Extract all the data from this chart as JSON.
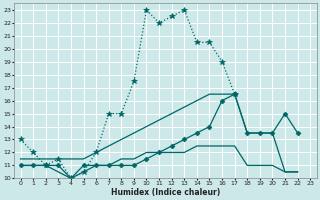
{
  "xlabel": "Humidex (Indice chaleur)",
  "background_color": "#cce8e8",
  "grid_color": "#ffffff",
  "line_color": "#006666",
  "xlim": [
    -0.5,
    23.5
  ],
  "ylim": [
    10,
    23.5
  ],
  "xticks": [
    0,
    1,
    2,
    3,
    4,
    5,
    6,
    7,
    8,
    9,
    10,
    11,
    12,
    13,
    14,
    15,
    16,
    17,
    18,
    19,
    20,
    21,
    22,
    23
  ],
  "yticks": [
    10,
    11,
    12,
    13,
    14,
    15,
    16,
    17,
    18,
    19,
    20,
    21,
    22,
    23
  ],
  "lines": [
    {
      "x": [
        0,
        1,
        2,
        3,
        4,
        5,
        6,
        7,
        8,
        9,
        10,
        11,
        12,
        13,
        14,
        15,
        16,
        17
      ],
      "y": [
        13,
        12,
        11,
        11.5,
        10,
        10.5,
        12,
        15,
        15,
        17.5,
        23,
        22,
        22.5,
        23,
        20.5,
        20.5,
        19,
        16.5
      ],
      "style": "dotted",
      "marker": "*",
      "markersize": 4
    },
    {
      "x": [
        0,
        1,
        2,
        3,
        4,
        5,
        6,
        7,
        8,
        9,
        10,
        11,
        12,
        13,
        14,
        15,
        16,
        17,
        18,
        19,
        20,
        21,
        22,
        23
      ],
      "y": [
        11,
        11,
        11,
        11,
        10,
        11,
        11,
        11,
        11,
        11,
        11.5,
        12,
        12.5,
        13,
        13.5,
        14,
        16,
        16.5,
        13.5,
        13.5,
        13.5,
        15,
        13.5,
        null
      ],
      "style": "solid",
      "marker": "D",
      "markersize": 2.5
    },
    {
      "x": [
        0,
        1,
        2,
        3,
        4,
        5,
        6,
        7,
        8,
        9,
        10,
        11,
        12,
        13,
        14,
        15,
        16,
        17,
        18,
        19,
        20,
        21,
        22,
        23
      ],
      "y": [
        11.5,
        11.5,
        11.5,
        11.5,
        11.5,
        11.5,
        12,
        12.5,
        13,
        13.5,
        14,
        14.5,
        15,
        15.5,
        16,
        16.5,
        16.5,
        16.5,
        13.5,
        13.5,
        13.5,
        10.5,
        10.5,
        null
      ],
      "style": "solid",
      "marker": null,
      "markersize": 0
    },
    {
      "x": [
        0,
        1,
        2,
        3,
        4,
        5,
        6,
        7,
        8,
        9,
        10,
        11,
        12,
        13,
        14,
        15,
        16,
        17,
        18,
        19,
        20,
        21,
        22,
        23
      ],
      "y": [
        11,
        11,
        11,
        10.5,
        10,
        10.5,
        11,
        11,
        11.5,
        11.5,
        12,
        12,
        12,
        12,
        12.5,
        12.5,
        12.5,
        12.5,
        11,
        11,
        11,
        10.5,
        10.5,
        null
      ],
      "style": "solid",
      "marker": null,
      "markersize": 0
    }
  ]
}
